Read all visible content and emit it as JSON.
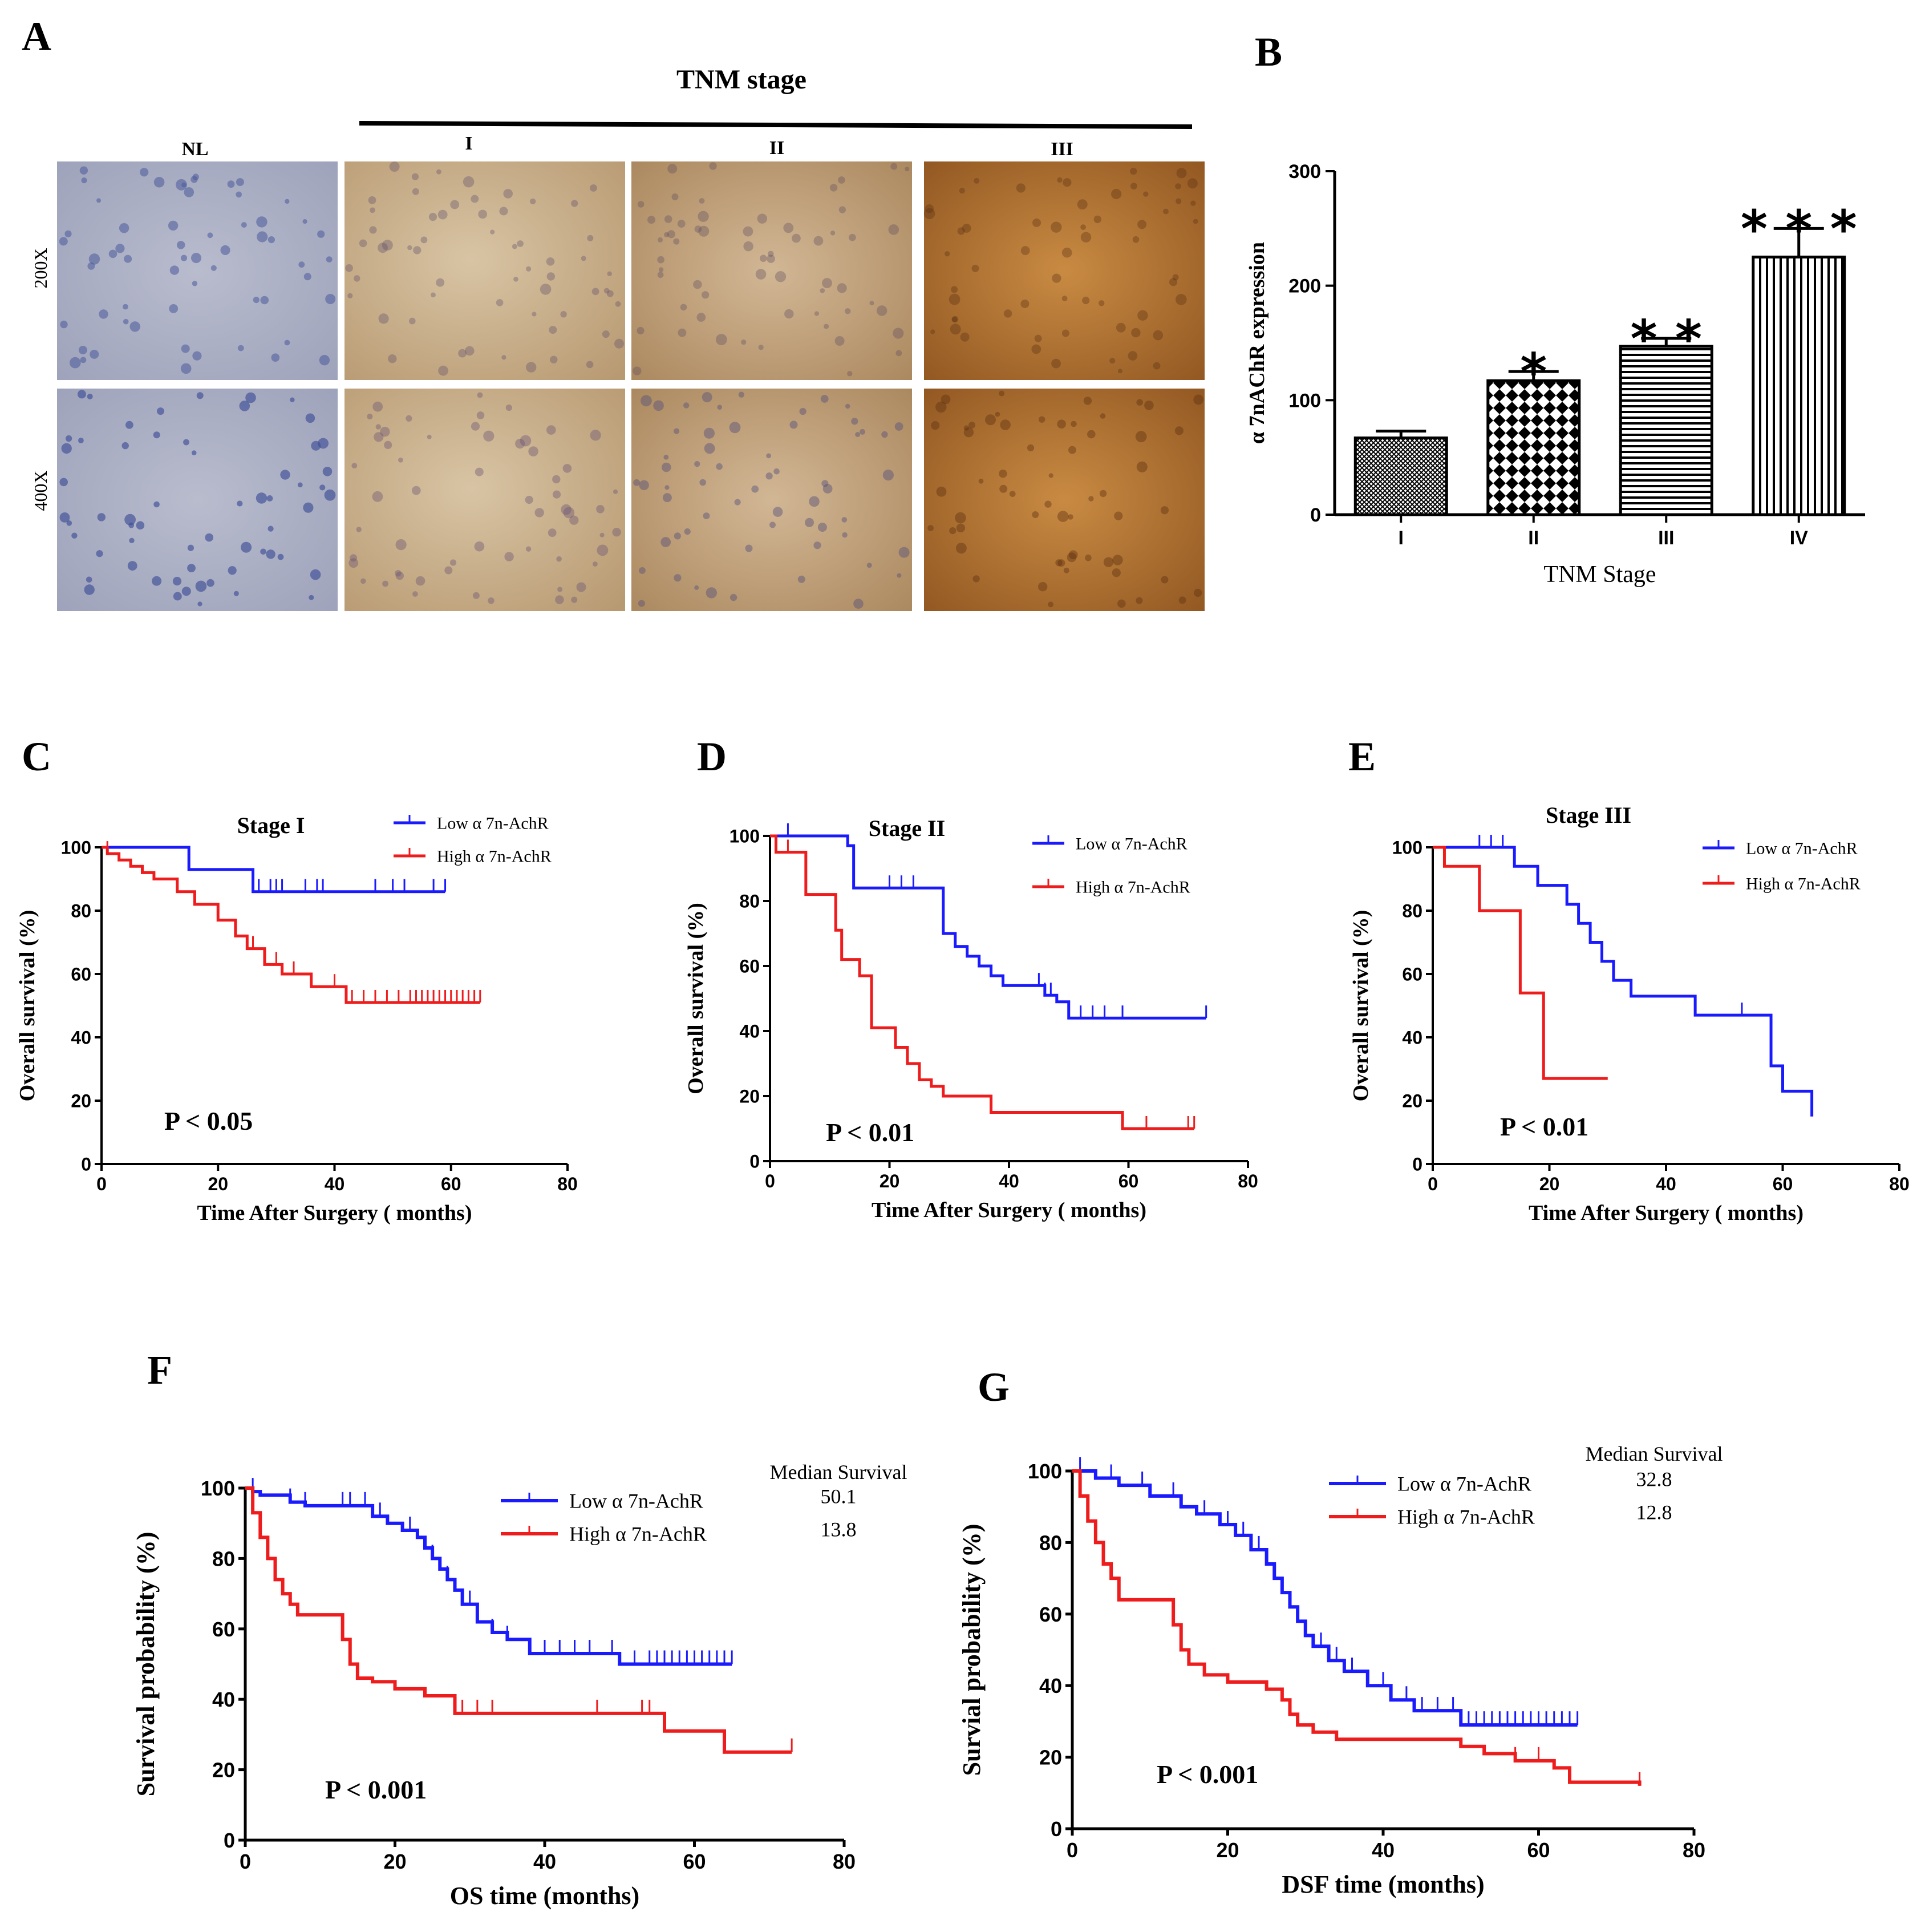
{
  "panels": {
    "A": "A",
    "B": "B",
    "C": "C",
    "D": "D",
    "E": "E",
    "F": "F",
    "G": "G"
  },
  "histology": {
    "header": "TNM stage",
    "columns": [
      "NL",
      "I",
      "II",
      "III"
    ],
    "rows": [
      "200X",
      "400X"
    ]
  },
  "chart_data": [
    {
      "id": "B",
      "type": "bar",
      "categories": [
        "I",
        "II",
        "III",
        "IV"
      ],
      "values": [
        67,
        117,
        147,
        225
      ],
      "errors": [
        6,
        8,
        7,
        25
      ],
      "significance": [
        "",
        "*",
        "**",
        "***"
      ],
      "patterns": [
        "crosshatch",
        "checker",
        "horizontal",
        "vertical"
      ],
      "xlabel": "TNM Stage",
      "ylabel": "α 7nAChR expression",
      "ylim": [
        0,
        300
      ],
      "yticks": [
        0,
        100,
        200,
        300
      ]
    },
    {
      "id": "C",
      "type": "line",
      "title": "Stage I",
      "xlabel": "Time After Surgery ( months)",
      "ylabel": "Overall survival (%)",
      "xlim": [
        0,
        80
      ],
      "ylim": [
        0,
        100
      ],
      "xticks": [
        0,
        20,
        40,
        60,
        80
      ],
      "yticks": [
        0,
        20,
        40,
        60,
        80,
        100
      ],
      "pvalue": "P < 0.05",
      "series": [
        {
          "name": "Low α 7n-AchR",
          "color": "#1a1aff",
          "x": [
            0,
            15,
            26,
            59
          ],
          "y": [
            100,
            93,
            86,
            86
          ],
          "censor_x": [
            26,
            27,
            29,
            30,
            31,
            35,
            37,
            38,
            47,
            50,
            52,
            57,
            59
          ]
        },
        {
          "name": "High α 7n-AchR",
          "color": "#ee1c1c",
          "x": [
            0,
            1,
            3,
            5,
            7,
            9,
            13,
            16,
            20,
            23,
            25,
            28,
            31,
            36,
            42,
            65
          ],
          "y": [
            100,
            98,
            96,
            94,
            92,
            90,
            86,
            82,
            77,
            72,
            68,
            63,
            60,
            56,
            51,
            51
          ],
          "censor_x": [
            1,
            26,
            30,
            33,
            36,
            40,
            43,
            45,
            47,
            49,
            51,
            53,
            54,
            55,
            56,
            57,
            58,
            59,
            60,
            61,
            62,
            63,
            64,
            65
          ]
        }
      ]
    },
    {
      "id": "D",
      "type": "line",
      "title": "Stage II",
      "xlabel": "Time After Surgery ( months)",
      "ylabel": "Overall survival (%)",
      "xlim": [
        0,
        80
      ],
      "ylim": [
        0,
        100
      ],
      "xticks": [
        0,
        20,
        40,
        60,
        80
      ],
      "yticks": [
        0,
        20,
        40,
        60,
        80,
        100
      ],
      "pvalue": "P < 0.01",
      "series": [
        {
          "name": "Low α 7n-AchR",
          "color": "#1a1aff",
          "x": [
            0,
            13,
            14,
            28,
            29,
            31,
            33,
            35,
            37,
            39,
            44,
            46,
            48,
            50,
            73
          ],
          "y": [
            100,
            97,
            84,
            84,
            70,
            66,
            63,
            60,
            57,
            54,
            54,
            51,
            49,
            44,
            44
          ],
          "censor_x": [
            3,
            20,
            22,
            24,
            29,
            45,
            46,
            47,
            52,
            54,
            56,
            59,
            73
          ]
        },
        {
          "name": "High α 7n-AchR",
          "color": "#ee1c1c",
          "x": [
            0,
            1,
            6,
            11,
            12,
            15,
            17,
            19,
            21,
            23,
            25,
            27,
            29,
            34,
            37,
            42,
            59,
            71
          ],
          "y": [
            100,
            95,
            82,
            71,
            62,
            57,
            41,
            41,
            35,
            30,
            25,
            23,
            20,
            20,
            15,
            15,
            10,
            10
          ],
          "censor_x": [
            1,
            3,
            63,
            70,
            71
          ]
        }
      ]
    },
    {
      "id": "E",
      "type": "line",
      "title": "Stage III",
      "xlabel": "Time After Surgery ( months)",
      "ylabel": "Overall survival (%)",
      "xlim": [
        0,
        80
      ],
      "ylim": [
        0,
        100
      ],
      "xticks": [
        0,
        20,
        40,
        60,
        80
      ],
      "yticks": [
        0,
        20,
        40,
        60,
        80,
        100
      ],
      "pvalue": "P < 0.01",
      "series": [
        {
          "name": "Low α 7n-AchR",
          "color": "#1a1aff",
          "x": [
            0,
            14,
            18,
            23,
            25,
            27,
            29,
            31,
            34,
            45,
            57,
            58,
            60,
            64,
            65
          ],
          "y": [
            100,
            94,
            88,
            82,
            76,
            70,
            64,
            58,
            53,
            47,
            47,
            31,
            23,
            23,
            15
          ],
          "censor_x": [
            8,
            10,
            12,
            14,
            53
          ]
        },
        {
          "name": "High α 7n-AchR",
          "color": "#ee1c1c",
          "x": [
            0,
            2,
            8,
            15,
            19,
            30
          ],
          "y": [
            100,
            94,
            80,
            54,
            27,
            27
          ],
          "censor_x": []
        }
      ]
    },
    {
      "id": "F",
      "type": "line",
      "xlabel": "OS time  (months)",
      "ylabel": "Survival probability  (%)",
      "xlim": [
        0,
        80
      ],
      "ylim": [
        0,
        100
      ],
      "xticks": [
        0,
        20,
        40,
        60,
        80
      ],
      "yticks": [
        0,
        20,
        40,
        60,
        80,
        100
      ],
      "pvalue": "P < 0.001",
      "median_header": "Median Survival",
      "series": [
        {
          "name": "Low α 7n-AchR",
          "color": "#1a1aff",
          "median": "50.1",
          "x": [
            0,
            1,
            2,
            6,
            8,
            14,
            17,
            19,
            21,
            23,
            24,
            25,
            26,
            27,
            28,
            29,
            31,
            33,
            35,
            38,
            50,
            65
          ],
          "y": [
            100,
            99,
            98,
            96,
            95,
            95,
            92,
            90,
            88,
            86,
            83,
            80,
            77,
            74,
            71,
            67,
            62,
            59,
            57,
            53,
            50,
            50
          ],
          "censor_x": [
            1,
            6,
            8,
            13,
            14,
            16,
            18,
            22,
            25,
            27,
            30,
            33,
            35,
            40,
            42,
            44,
            46,
            49,
            52,
            54,
            55,
            56,
            57,
            58,
            59,
            60,
            61,
            62,
            63,
            64,
            65
          ]
        },
        {
          "name": "High α 7n-AchR",
          "color": "#ee1c1c",
          "median": "13.8",
          "x": [
            0,
            1,
            2,
            3,
            4,
            5,
            6,
            7,
            12,
            13,
            14,
            15,
            17,
            20,
            24,
            28,
            56,
            64,
            73
          ],
          "y": [
            100,
            93,
            86,
            80,
            74,
            70,
            67,
            64,
            64,
            57,
            50,
            46,
            45,
            43,
            41,
            36,
            31,
            25,
            25
          ],
          "censor_x": [
            29,
            31,
            33,
            47,
            53,
            54,
            73
          ]
        }
      ]
    },
    {
      "id": "G",
      "type": "line",
      "xlabel": "DSF time (months)",
      "ylabel": "Survial probability (%)",
      "xlim": [
        0,
        80
      ],
      "ylim": [
        0,
        100
      ],
      "xticks": [
        0,
        20,
        40,
        60,
        80
      ],
      "yticks": [
        0,
        20,
        40,
        60,
        80,
        100
      ],
      "pvalue": "P < 0.001",
      "median_header": "Median Survival",
      "series": [
        {
          "name": "Low α 7n-AchR",
          "color": "#1a1aff",
          "median": "32.8",
          "x": [
            0,
            3,
            6,
            10,
            14,
            16,
            19,
            21,
            23,
            25,
            26,
            27,
            28,
            29,
            30,
            31,
            33,
            35,
            38,
            41,
            44,
            50,
            65
          ],
          "y": [
            100,
            98,
            96,
            93,
            90,
            88,
            85,
            82,
            78,
            74,
            70,
            66,
            62,
            58,
            54,
            51,
            47,
            44,
            40,
            36,
            33,
            29,
            29
          ],
          "censor_x": [
            1,
            5,
            9,
            13,
            17,
            20,
            22,
            24,
            26,
            27,
            29,
            32,
            34,
            36,
            38,
            40,
            43,
            45,
            47,
            49,
            50,
            51,
            52,
            53,
            54,
            55,
            56,
            57,
            58,
            59,
            60,
            61,
            62,
            63,
            64,
            65
          ]
        },
        {
          "name": "High α 7n-AchR",
          "color": "#ee1c1c",
          "median": "12.8",
          "x": [
            0,
            1,
            2,
            3,
            4,
            5,
            6,
            12,
            13,
            14,
            15,
            17,
            20,
            25,
            27,
            28,
            29,
            31,
            34,
            47,
            50,
            53,
            57,
            62,
            64,
            73
          ],
          "y": [
            100,
            93,
            86,
            80,
            74,
            70,
            64,
            64,
            57,
            50,
            46,
            43,
            41,
            39,
            36,
            32,
            29,
            27,
            25,
            25,
            23,
            21,
            19,
            17,
            13,
            12
          ],
          "censor_x": [
            57,
            60,
            73
          ]
        }
      ]
    }
  ]
}
